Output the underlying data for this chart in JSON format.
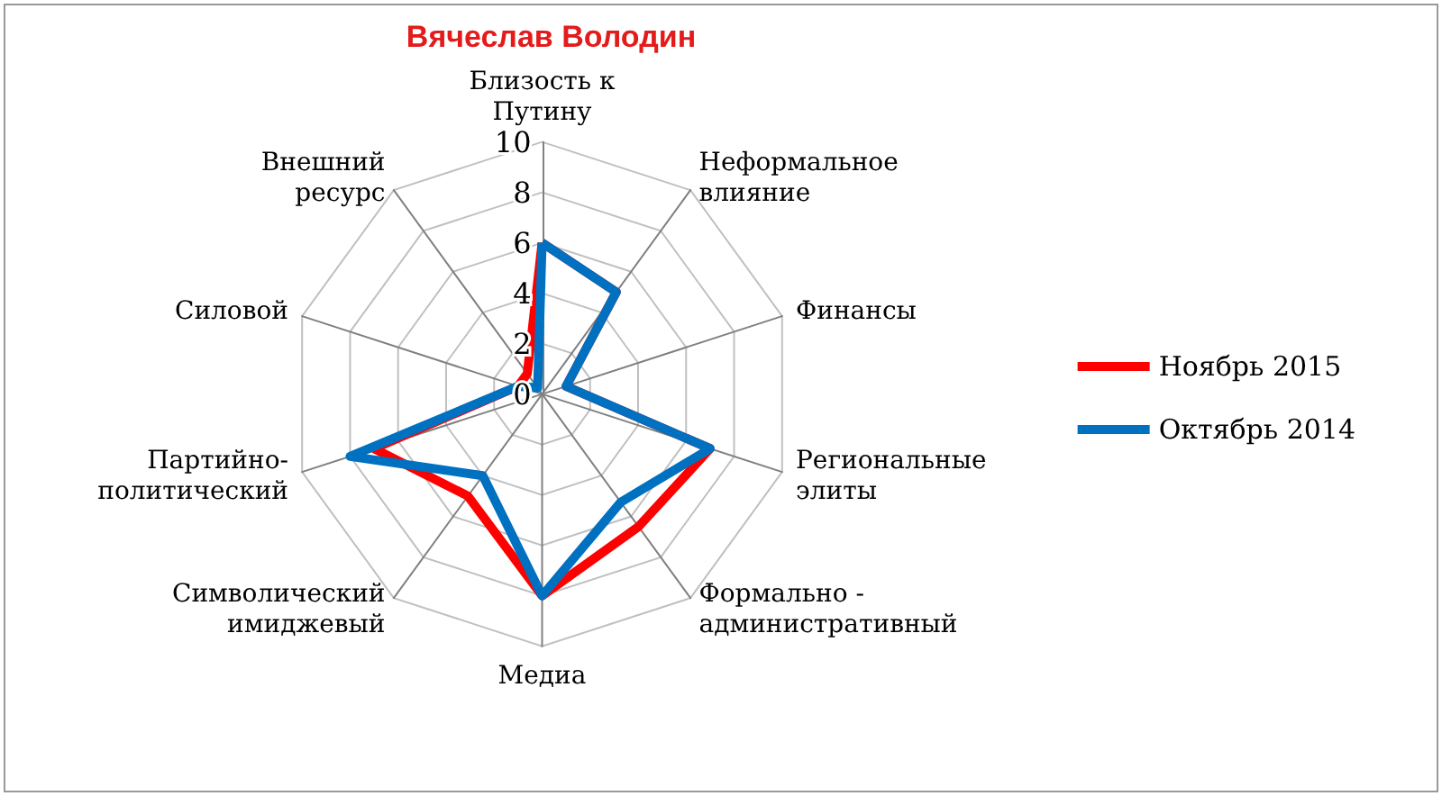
{
  "chart_data": {
    "type": "radar",
    "title": "Вячеслав Володин",
    "categories": [
      "Близость к Путину",
      "Неформальное влияние",
      "Финансы",
      "Региональные элиты",
      "Формально - административный",
      "Медиа",
      "Символический имиджевый",
      "Партийно-политический",
      "Силовой",
      "Внешний ресурс"
    ],
    "series": [
      {
        "name": "Ноябрь 2015",
        "color": "#ff0000",
        "values": [
          6,
          5,
          1,
          7,
          6.5,
          8,
          5,
          7,
          1,
          1
        ]
      },
      {
        "name": "Октябрь 2014",
        "color": "#0070c0",
        "values": [
          6,
          5,
          1,
          7,
          5.3,
          8,
          4,
          8,
          1,
          0.3
        ]
      }
    ],
    "ylim": [
      0,
      10
    ],
    "yticks": [
      0,
      2,
      4,
      6,
      8,
      10
    ],
    "legend": "right",
    "grid": true,
    "marker": "none",
    "line_style": "solid"
  }
}
